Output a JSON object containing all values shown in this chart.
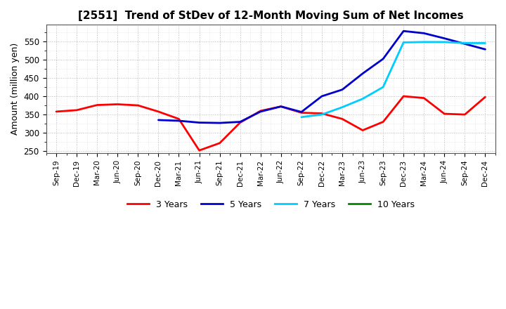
{
  "title": "[2551]  Trend of StDev of 12-Month Moving Sum of Net Incomes",
  "ylabel": "Amount (million yen)",
  "ylim": [
    245,
    595
  ],
  "yticks": [
    250,
    300,
    350,
    400,
    450,
    500,
    550
  ],
  "background_color": "#ffffff",
  "plot_bg_color": "#ffffff",
  "grid_color": "#aaaaaa",
  "x_labels": [
    "Sep-19",
    "Dec-19",
    "Mar-20",
    "Jun-20",
    "Sep-20",
    "Dec-20",
    "Mar-21",
    "Jun-21",
    "Sep-21",
    "Dec-21",
    "Mar-22",
    "Jun-22",
    "Sep-22",
    "Dec-22",
    "Mar-23",
    "Jun-23",
    "Sep-23",
    "Dec-23",
    "Mar-24",
    "Jun-24",
    "Sep-24",
    "Dec-24"
  ],
  "series": {
    "3 Years": {
      "color": "#ff0000",
      "data": [
        358,
        362,
        376,
        378,
        375,
        358,
        338,
        252,
        272,
        328,
        360,
        372,
        355,
        353,
        338,
        307,
        330,
        400,
        395,
        352,
        350,
        398
      ]
    },
    "5 Years": {
      "color": "#0000cc",
      "data": [
        null,
        null,
        null,
        null,
        null,
        335,
        333,
        328,
        327,
        330,
        358,
        372,
        357,
        400,
        418,
        462,
        502,
        578,
        572,
        558,
        543,
        528
      ]
    },
    "7 Years": {
      "color": "#00ccff",
      "data": [
        null,
        null,
        null,
        null,
        null,
        null,
        null,
        null,
        null,
        null,
        null,
        null,
        343,
        350,
        370,
        393,
        425,
        547,
        548,
        548,
        545,
        545
      ]
    },
    "10 Years": {
      "color": "#008800",
      "data": [
        null,
        null,
        null,
        null,
        null,
        null,
        null,
        null,
        null,
        null,
        null,
        null,
        null,
        null,
        null,
        null,
        null,
        null,
        null,
        null,
        null,
        null
      ]
    }
  },
  "legend_entries": [
    "3 Years",
    "5 Years",
    "7 Years",
    "10 Years"
  ],
  "legend_colors": [
    "#ff0000",
    "#0000cc",
    "#00ccff",
    "#008800"
  ]
}
